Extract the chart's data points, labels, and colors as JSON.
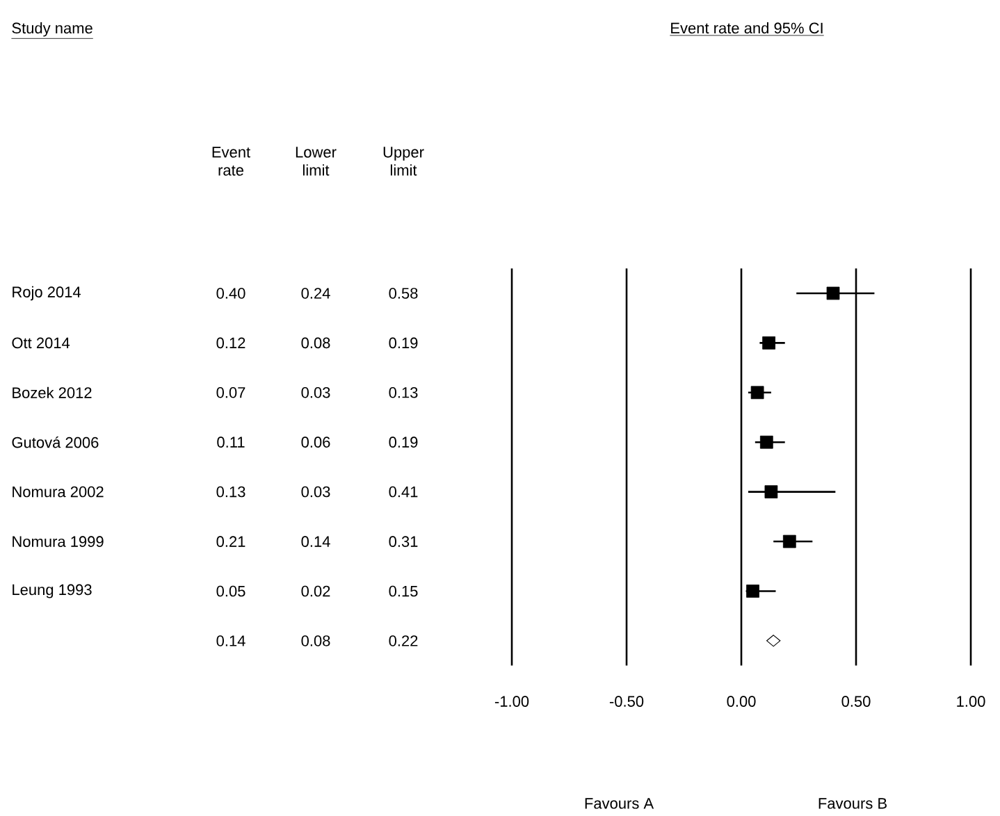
{
  "chart_data": [
    {
      "type": "other",
      "title": "Study name",
      "categories": [
        "Rojo 2014",
        "Ott 2014",
        "Bozek 2012",
        "Gutová 2006",
        "Nomura 2002",
        "Nomura 1999",
        "Leung 1993",
        null
      ],
      "annotations": [
        "Event rate",
        "Lower limit",
        "Upper limit",
        "0.40",
        "0.24",
        "0.58",
        "0.12",
        "0.08",
        "0.19",
        "0.07",
        "0.03",
        "0.13",
        "0.11",
        "0.06",
        "0.19",
        "0.13",
        "0.03",
        "0.41",
        "0.21",
        "0.14",
        "0.31",
        "0.05",
        "0.02",
        "0.15",
        "0.14",
        "0.08",
        "0.22"
      ]
    },
    {
      "type": "scatter",
      "orientation": "horizontal",
      "title": "Event rate and 95% CI",
      "categories": [
        null,
        null,
        null,
        null,
        null,
        null,
        null,
        null
      ],
      "series": [
        {
          "color": "#000000",
          "marker": "square",
          "values": [
            0.4,
            0.12,
            0.07,
            0.11,
            0.13,
            0.21,
            0.05,
            null
          ],
          "errors": [
            [
              0.24,
              0.58
            ],
            [
              0.08,
              0.19
            ],
            [
              0.03,
              0.13
            ],
            [
              0.06,
              0.19
            ],
            [
              0.03,
              0.41
            ],
            [
              0.14,
              0.31
            ],
            [
              0.02,
              0.15
            ],
            null
          ]
        },
        {
          "color": "#000000",
          "marker": "diamond",
          "values": [
            null,
            null,
            null,
            null,
            null,
            null,
            null,
            0.14
          ]
        }
      ],
      "xlim": [
        -1,
        1
      ],
      "xticks": [
        {
          "value": -1,
          "label": "-1.00"
        },
        {
          "value": -0.5,
          "label": "-0.50"
        },
        {
          "value": 0,
          "label": "0.00"
        },
        {
          "value": 0.5,
          "label": "0.50"
        },
        {
          "value": 1,
          "label": "1.00"
        }
      ],
      "grid": "x",
      "annotations": [
        "Favours A",
        "Favours B"
      ]
    }
  ]
}
